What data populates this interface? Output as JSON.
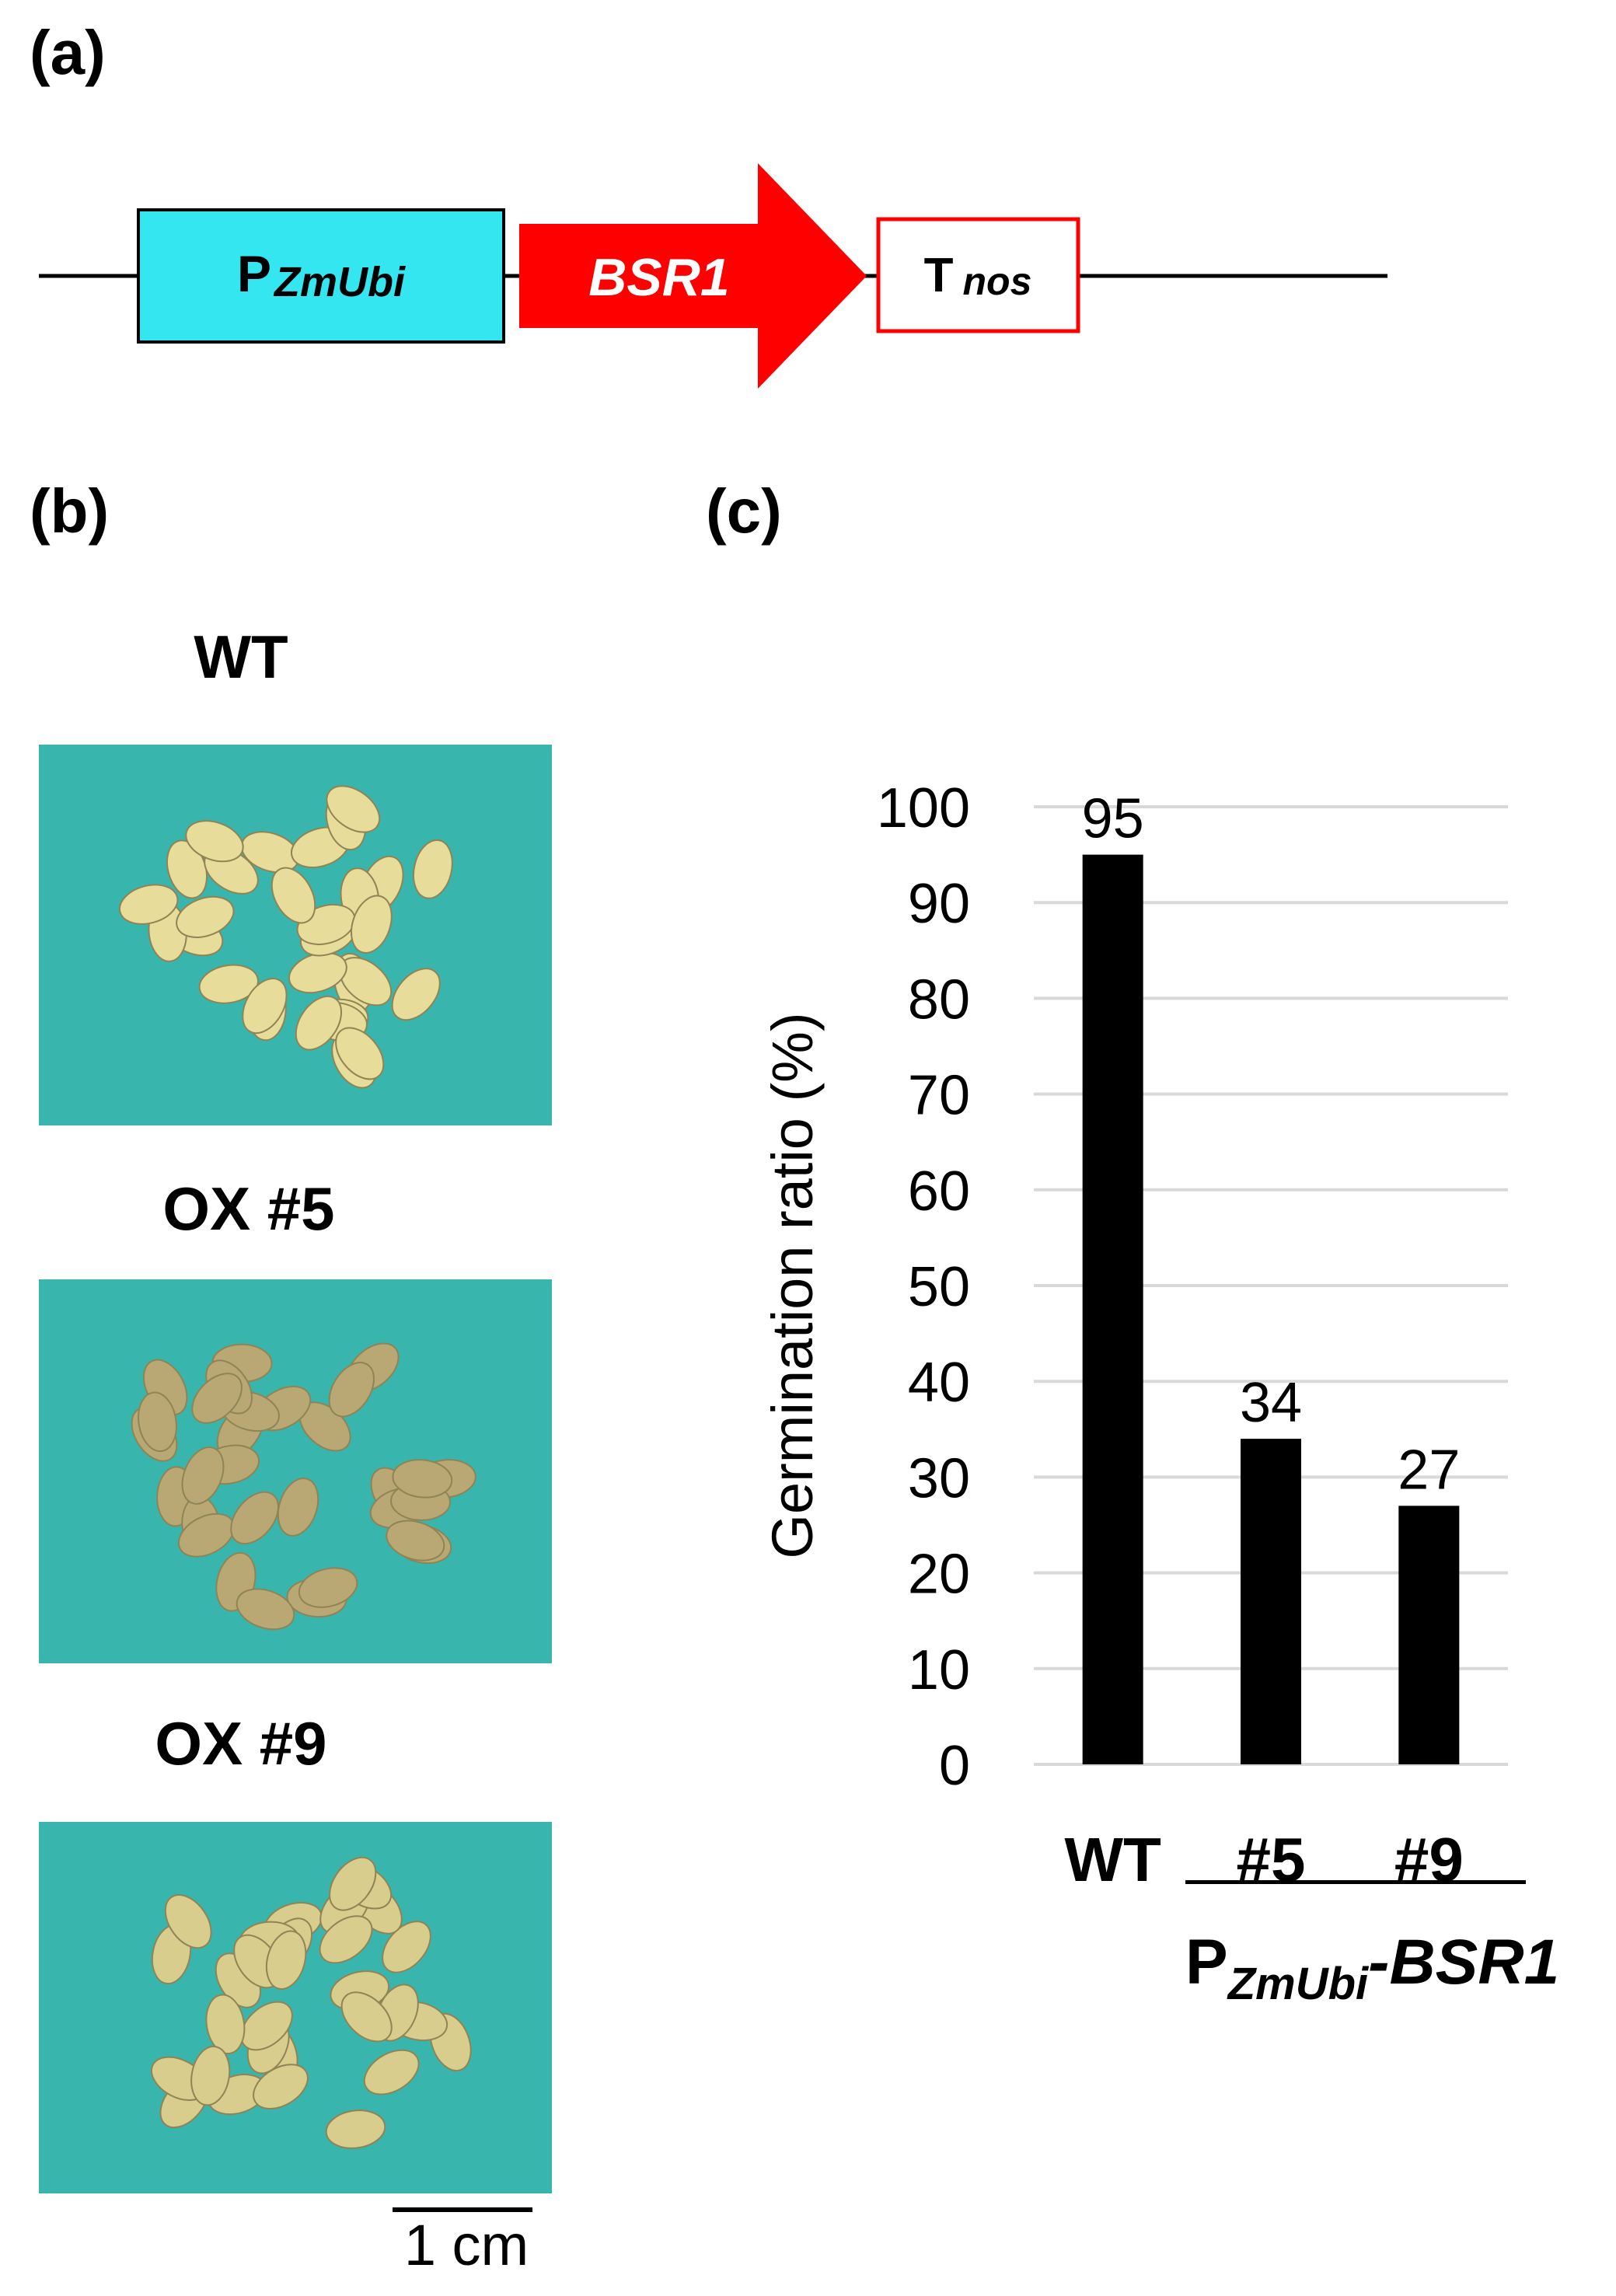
{
  "panels": {
    "a": "(a)",
    "b": "(b)",
    "c": "(c)"
  },
  "construct": {
    "promoter_main": "P",
    "promoter_sub": "ZmUbi",
    "gene": "BSR1",
    "terminator_main": "T",
    "terminator_sub": "nos",
    "colors": {
      "promoter": "#33e6f0",
      "gene": "#ff0000",
      "terminator_border": "#ff0000"
    }
  },
  "photos": [
    {
      "label": "WT",
      "seed_tone": "#e8dc9a"
    },
    {
      "label": "OX #5",
      "seed_tone": "#b9a874"
    },
    {
      "label": "OX #9",
      "seed_tone": "#d9cd8e"
    }
  ],
  "photo_background": "#38b5ad",
  "scale_bar_label": "1 cm",
  "transgene_label_main": "P",
  "transgene_label_sub": "ZmUbi",
  "transgene_label_gene": "-BSR1",
  "chart_data": {
    "type": "bar",
    "categories": [
      "WT",
      "#5",
      "#9"
    ],
    "values": [
      95,
      34,
      27
    ],
    "data_labels": [
      "95",
      "34",
      "27"
    ],
    "ylabel": "Germination ratio (%)",
    "ylim": [
      0,
      100
    ],
    "yticks": [
      0,
      10,
      20,
      30,
      40,
      50,
      60,
      70,
      80,
      90,
      100
    ],
    "grid": true,
    "bar_color": "#000000",
    "grid_color": "#d9d9d9"
  }
}
